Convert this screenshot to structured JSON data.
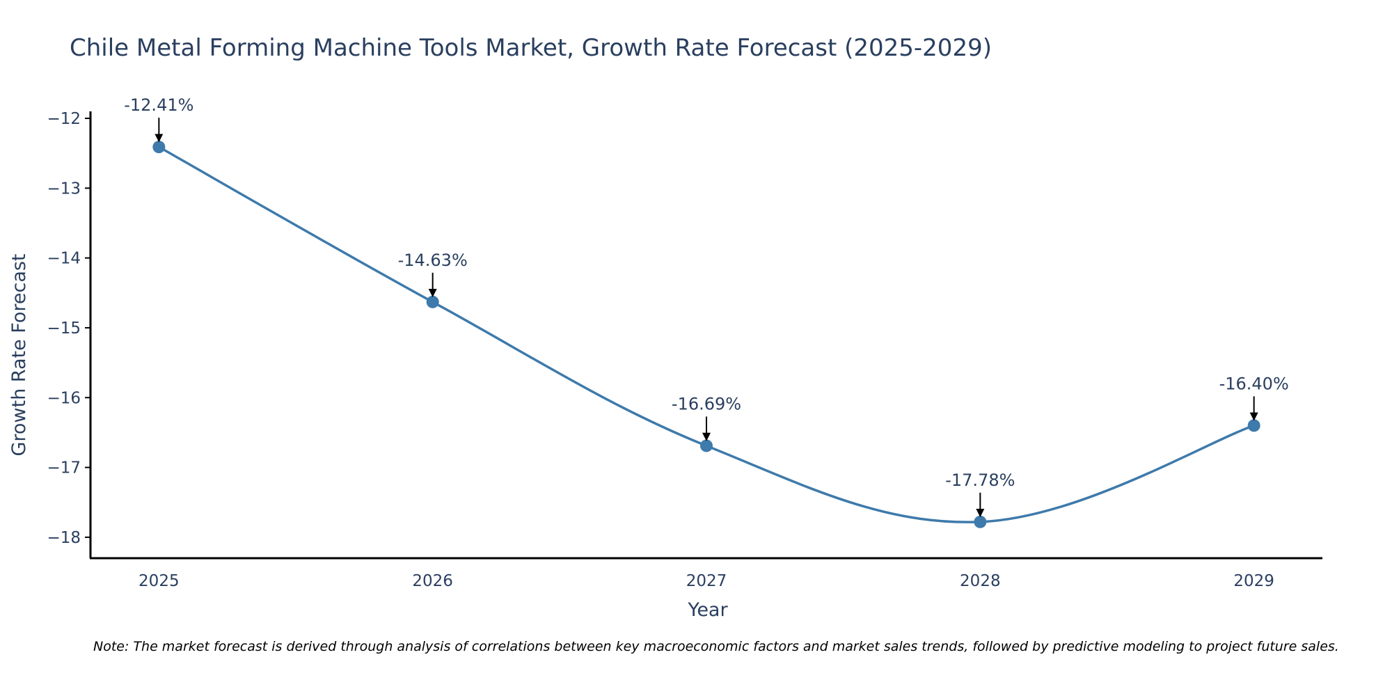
{
  "colors": {
    "line": "#3e7aab",
    "marker": "#3e7aab",
    "axis": "#000000",
    "arrow": "#000000",
    "text": "#2a3f5f"
  },
  "chart_data": {
    "type": "line",
    "title": "Chile Metal Forming Machine Tools Market, Growth Rate Forecast (2025-2029)",
    "xlabel": "Year",
    "ylabel": "Growth Rate Forecast",
    "categories": [
      "2025",
      "2026",
      "2027",
      "2028",
      "2029"
    ],
    "x": [
      2025,
      2026,
      2027,
      2028,
      2029
    ],
    "values": [
      -12.41,
      -14.63,
      -16.69,
      -17.78,
      -16.4
    ],
    "data_labels": [
      "-12.41%",
      "-14.63%",
      "-16.69%",
      "-17.78%",
      "-16.40%"
    ],
    "xlim": [
      2024.75,
      2029.25
    ],
    "ylim": [
      -18.3,
      -11.9
    ],
    "yticks": [
      -12,
      -13,
      -14,
      -15,
      -16,
      -17,
      -18
    ],
    "ytick_labels": [
      "−12",
      "−13",
      "−14",
      "−15",
      "−16",
      "−17",
      "−18"
    ],
    "grid": false,
    "smoothing": "spline",
    "note": "Note: The market forecast is derived through analysis of correlations between key macroeconomic factors and market sales trends, followed by predictive modeling to project future sales."
  }
}
